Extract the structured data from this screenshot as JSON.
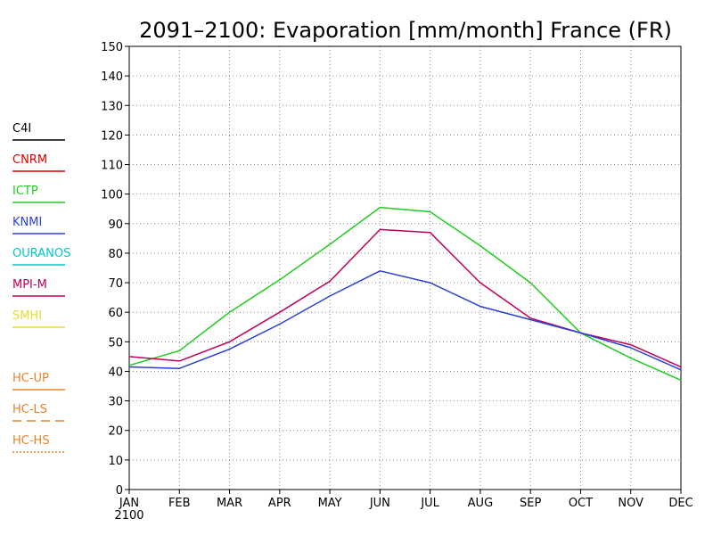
{
  "chart_data": {
    "type": "line",
    "title": "2091–2100: Evaporation [mm/month] France (FR)",
    "categories": [
      "JAN",
      "FEB",
      "MAR",
      "APR",
      "MAY",
      "JUN",
      "JUL",
      "AUG",
      "SEP",
      "OCT",
      "NOV",
      "DEC"
    ],
    "x_sublabel": "2100",
    "ylim": [
      0,
      150
    ],
    "yticks": [
      0,
      10,
      20,
      30,
      40,
      50,
      60,
      70,
      80,
      90,
      100,
      110,
      120,
      130,
      140,
      150
    ],
    "grid": true,
    "legend_position": "left",
    "legend": [
      {
        "name": "C4I",
        "color": "#000000",
        "dash": "solid"
      },
      {
        "name": "CNRM",
        "color": "#e00000",
        "dash": "solid"
      },
      {
        "name": "ICTP",
        "color": "#1ecc1e",
        "dash": "solid"
      },
      {
        "name": "KNMI",
        "color": "#2a3fd8",
        "dash": "solid"
      },
      {
        "name": "OURANOS",
        "color": "#00c8c8",
        "dash": "solid"
      },
      {
        "name": "MPI-M",
        "color": "#c0005a",
        "dash": "solid"
      },
      {
        "name": "SMHI",
        "color": "#e6dc32",
        "dash": "solid"
      },
      {
        "name": "HC-UP",
        "color": "#e8822a",
        "dash": "solid"
      },
      {
        "name": "HC-LS",
        "color": "#e8822a",
        "dash": "dashed"
      },
      {
        "name": "HC-HS",
        "color": "#e8822a",
        "dash": "dotted"
      }
    ],
    "series": [
      {
        "name": "ICTP",
        "color": "#1ecc1e",
        "values": [
          42,
          47,
          60,
          71,
          83,
          95.5,
          94,
          82.5,
          70,
          53,
          44.5,
          37
        ]
      },
      {
        "name": "MPI-M",
        "color": "#c0005a",
        "values": [
          45,
          43.5,
          50,
          60,
          70.5,
          88,
          87,
          70,
          58,
          53,
          49,
          41.5
        ]
      },
      {
        "name": "KNMI",
        "color": "#2a3fd8",
        "values": [
          41.5,
          41,
          47.5,
          56,
          65.5,
          74,
          70,
          62,
          57.5,
          53,
          48,
          40.5
        ]
      }
    ]
  }
}
